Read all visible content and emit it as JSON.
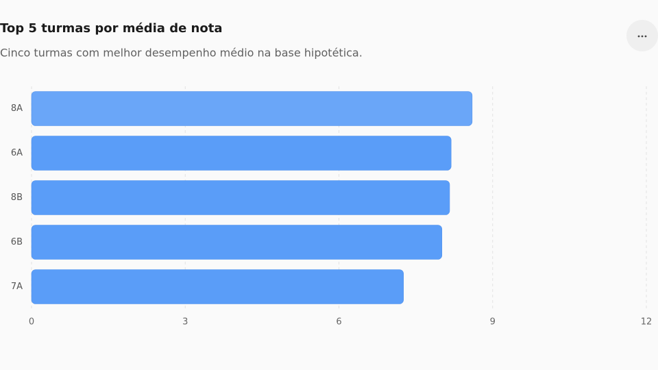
{
  "chart_data": {
    "type": "bar",
    "orientation": "horizontal",
    "title": "Top 5 turmas por média de nota",
    "subtitle": "Cinco turmas com melhor desempenho médio na base hipotética.",
    "categories": [
      "8A",
      "6A",
      "8B",
      "6B",
      "7A"
    ],
    "values": [
      8.6,
      8.19,
      8.16,
      8.01,
      7.26
    ],
    "colors": [
      "#6aa6f8",
      "#5a9df8",
      "#5a9df8",
      "#5a9df8",
      "#5a9df8"
    ],
    "xlim": [
      0,
      12
    ],
    "xticks": [
      0,
      3,
      6,
      9,
      12
    ],
    "grid": true
  }
}
